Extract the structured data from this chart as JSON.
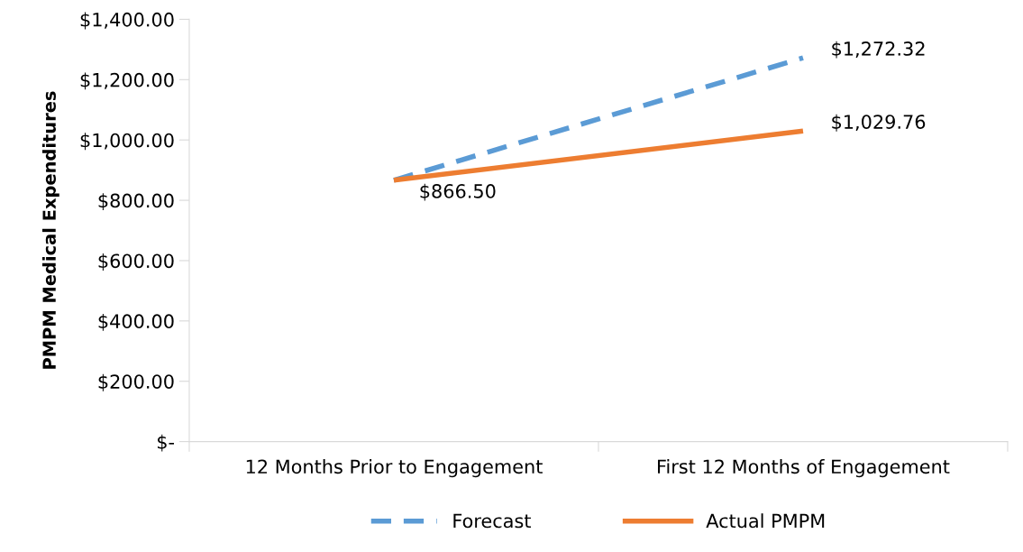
{
  "chart_data": {
    "type": "line",
    "ylabel": "PMPM Medical Expenditures",
    "categories": [
      "12 Months Prior to Engagement",
      "First 12 Months of Engagement"
    ],
    "series": [
      {
        "name": "Forecast",
        "color": "#5b9bd5",
        "line_style": "dashed",
        "values": [
          866.5,
          1272.32
        ],
        "value_labels": [
          null,
          "$1,272.32"
        ]
      },
      {
        "name": "Actual PMPM",
        "color": "#ed7d31",
        "line_style": "solid",
        "values": [
          866.5,
          1029.76
        ],
        "value_labels": [
          "$866.50",
          "$1,029.76"
        ]
      }
    ],
    "ylim": [
      0,
      1400
    ],
    "yticks": [
      {
        "value": 0,
        "label": "$-"
      },
      {
        "value": 200,
        "label": "$200.00"
      },
      {
        "value": 400,
        "label": "$400.00"
      },
      {
        "value": 600,
        "label": "$600.00"
      },
      {
        "value": 800,
        "label": "$800.00"
      },
      {
        "value": 1000,
        "label": "$1,000.00"
      },
      {
        "value": 1200,
        "label": "$1,200.00"
      },
      {
        "value": 1400,
        "label": "$1,400.00"
      }
    ],
    "grid": false,
    "legend": "bottom",
    "marker": "none"
  }
}
